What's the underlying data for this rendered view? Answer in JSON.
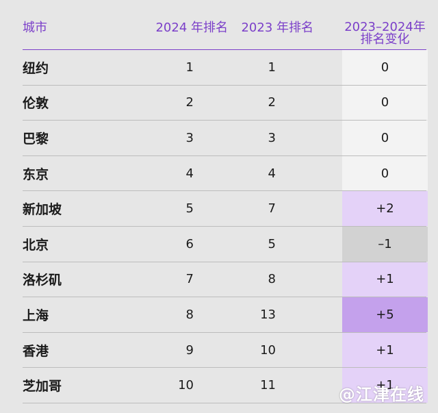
{
  "table": {
    "headers": {
      "city": "城市",
      "rank_2024": "2024 年排名",
      "rank_2023": "2023 年排名",
      "change_line1": "2023–2024年",
      "change_line2": "排名变化"
    },
    "rows": [
      {
        "city": "纽约",
        "rank_2024": "1",
        "rank_2023": "1",
        "change": "0",
        "change_color": "#f3f3f3"
      },
      {
        "city": "伦敦",
        "rank_2024": "2",
        "rank_2023": "2",
        "change": "0",
        "change_color": "#f3f3f3"
      },
      {
        "city": "巴黎",
        "rank_2024": "3",
        "rank_2023": "3",
        "change": "0",
        "change_color": "#f3f3f3"
      },
      {
        "city": "东京",
        "rank_2024": "4",
        "rank_2023": "4",
        "change": "0",
        "change_color": "#f3f3f3"
      },
      {
        "city": "新加坡",
        "rank_2024": "5",
        "rank_2023": "7",
        "change": "+2",
        "change_color": "#e4d2f8"
      },
      {
        "city": "北京",
        "rank_2024": "6",
        "rank_2023": "5",
        "change": "–1",
        "change_color": "#d2d2d2"
      },
      {
        "city": "洛杉矶",
        "rank_2024": "7",
        "rank_2023": "8",
        "change": "+1",
        "change_color": "#e4d2f8"
      },
      {
        "city": "上海",
        "rank_2024": "8",
        "rank_2023": "13",
        "change": "+5",
        "change_color": "#c4a1ec"
      },
      {
        "city": "香港",
        "rank_2024": "9",
        "rank_2023": "10",
        "change": "+1",
        "change_color": "#e4d2f8"
      },
      {
        "city": "芝加哥",
        "rank_2024": "10",
        "rank_2023": "11",
        "change": "+1",
        "change_color": "#e4d2f8"
      }
    ]
  },
  "watermark": "@江津在线",
  "colors": {
    "accent": "#7b3fc9",
    "background": "#e6e6e6"
  }
}
